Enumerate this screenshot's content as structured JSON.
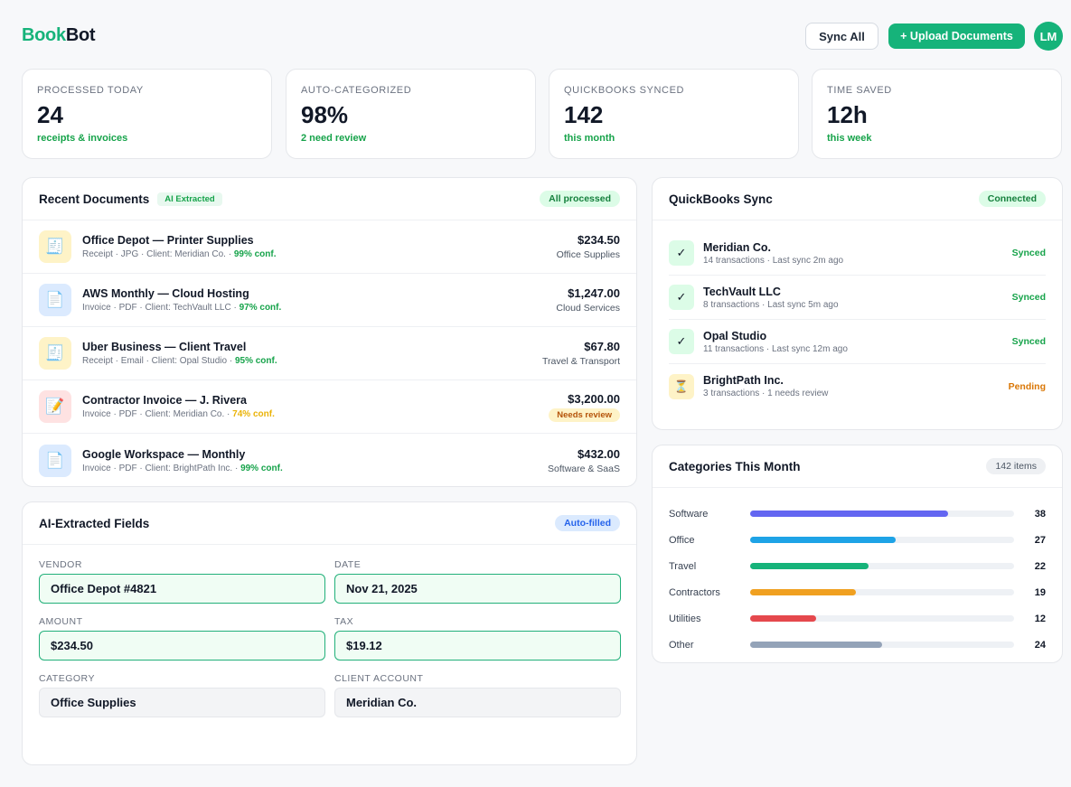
{
  "app": {
    "name_part1": "Book",
    "name_part2": "Bot"
  },
  "header": {
    "sync_label": "Sync All",
    "upload_label": "+ Upload Documents",
    "avatar_initials": "LM"
  },
  "stats": [
    {
      "label": "PROCESSED TODAY",
      "value": "24",
      "sub": "receipts & invoices"
    },
    {
      "label": "AUTO-CATEGORIZED",
      "value": "98%",
      "sub": "2 need review"
    },
    {
      "label": "QUICKBOOKS SYNCED",
      "value": "142",
      "sub": "this month"
    },
    {
      "label": "TIME SAVED",
      "value": "12h",
      "sub": "this week"
    }
  ],
  "recent": {
    "title": "Recent Documents",
    "tag": "AI Extracted",
    "status": "All processed",
    "docs": [
      {
        "icon": "receipt-icon",
        "color": "yellow",
        "title": "Office Depot — Printer Supplies",
        "meta": "Receipt · JPG · Client: Meridian Co. · ",
        "conf": "99% conf.",
        "warn": false,
        "amount": "$234.50",
        "category": "Office Supplies"
      },
      {
        "icon": "document-icon",
        "color": "blue",
        "title": "AWS Monthly — Cloud Hosting",
        "meta": "Invoice · PDF · Client: TechVault LLC · ",
        "conf": "97% conf.",
        "warn": false,
        "amount": "$1,247.00",
        "category": "Cloud Services"
      },
      {
        "icon": "receipt-icon",
        "color": "yellow",
        "title": "Uber Business — Client Travel",
        "meta": "Receipt · Email · Client: Opal Studio · ",
        "conf": "95% conf.",
        "warn": false,
        "amount": "$67.80",
        "category": "Travel & Transport"
      },
      {
        "icon": "invoice-edit-icon",
        "color": "red",
        "title": "Contractor Invoice — J. Rivera",
        "meta": "Invoice · PDF · Client: Meridian Co. · ",
        "conf": "74% conf.",
        "warn": true,
        "amount": "$3,200.00",
        "category": "Needs review"
      },
      {
        "icon": "document-icon",
        "color": "blue",
        "title": "Google Workspace — Monthly",
        "meta": "Invoice · PDF · Client: BrightPath Inc. · ",
        "conf": "99% conf.",
        "warn": false,
        "amount": "$432.00",
        "category": "Software & SaaS"
      }
    ]
  },
  "extracted": {
    "title": "AI-Extracted Fields",
    "status": "Auto-filled",
    "fields": [
      {
        "label": "VENDOR",
        "value": "Office Depot #4821",
        "style": "green"
      },
      {
        "label": "DATE",
        "value": "Nov 21, 2025",
        "style": "green"
      },
      {
        "label": "AMOUNT",
        "value": "$234.50",
        "style": "green"
      },
      {
        "label": "TAX",
        "value": "$19.12",
        "style": "green"
      },
      {
        "label": "CATEGORY",
        "value": "Office Supplies",
        "style": "grey"
      },
      {
        "label": "CLIENT ACCOUNT",
        "value": "Meridian Co.",
        "style": "grey"
      }
    ]
  },
  "quickbooks": {
    "title": "QuickBooks Sync",
    "status": "Connected",
    "clients": [
      {
        "name": "Meridian Co.",
        "meta": "14 transactions · Last sync 2m ago",
        "status": "Synced",
        "pending": false,
        "icon": "check-icon"
      },
      {
        "name": "TechVault LLC",
        "meta": "8 transactions · Last sync 5m ago",
        "status": "Synced",
        "pending": false,
        "icon": "check-icon"
      },
      {
        "name": "Opal Studio",
        "meta": "11 transactions · Last sync 12m ago",
        "status": "Synced",
        "pending": false,
        "icon": "check-icon"
      },
      {
        "name": "BrightPath Inc.",
        "meta": "3 transactions · 1 needs review",
        "status": "Pending",
        "pending": true,
        "icon": "hourglass-icon"
      }
    ]
  },
  "categories": {
    "title": "Categories This Month",
    "count": "142 items",
    "items": [
      {
        "name": "Software",
        "count": "38",
        "fill": 0.75,
        "color": "#6366f1"
      },
      {
        "name": "Office",
        "count": "27",
        "fill": 0.55,
        "color": "#1ea3e6"
      },
      {
        "name": "Travel",
        "count": "22",
        "fill": 0.45,
        "color": "#16b37a"
      },
      {
        "name": "Contractors",
        "count": "19",
        "fill": 0.4,
        "color": "#f0a020"
      },
      {
        "name": "Utilities",
        "count": "12",
        "fill": 0.25,
        "color": "#e5484d"
      },
      {
        "name": "Other",
        "count": "24",
        "fill": 0.5,
        "color": "#94a3b8"
      }
    ]
  }
}
